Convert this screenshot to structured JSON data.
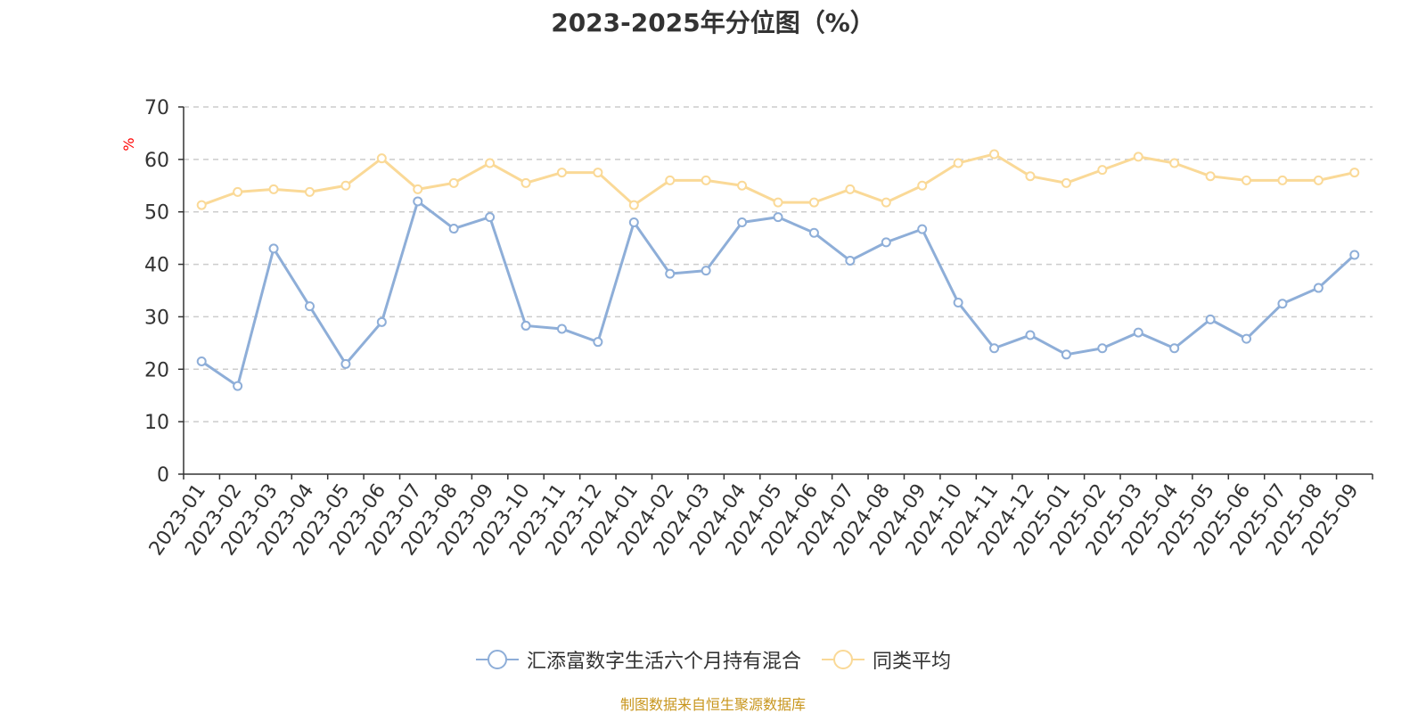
{
  "chart_data": {
    "type": "line",
    "title": "2023-2025年分位图（%）",
    "ylabel": "%",
    "ylim": [
      0,
      70
    ],
    "yticks": [
      0,
      10,
      20,
      30,
      40,
      50,
      60,
      70
    ],
    "grid": true,
    "legend_position": "bottom",
    "categories": [
      "2023-01",
      "2023-02",
      "2023-03",
      "2023-04",
      "2023-05",
      "2023-06",
      "2023-07",
      "2023-08",
      "2023-09",
      "2023-10",
      "2023-11",
      "2023-12",
      "2024-01",
      "2024-02",
      "2024-03",
      "2024-04",
      "2024-05",
      "2024-06",
      "2024-07",
      "2024-08",
      "2024-09",
      "2024-10",
      "2024-11",
      "2024-12",
      "2025-01",
      "2025-02",
      "2025-03",
      "2025-04",
      "2025-05",
      "2025-06",
      "2025-07",
      "2025-08",
      "2025-09"
    ],
    "series": [
      {
        "name": "汇添富数字生活六个月持有混合",
        "color": "#8eaed8",
        "values": [
          21.5,
          16.8,
          43.0,
          32.0,
          21.0,
          29.0,
          52.0,
          46.8,
          49.0,
          28.3,
          27.7,
          25.2,
          48.0,
          38.2,
          38.8,
          48.0,
          49.0,
          46.0,
          40.7,
          44.2,
          46.7,
          32.7,
          24.0,
          26.5,
          22.8,
          24.0,
          27.0,
          24.0,
          29.5,
          25.8,
          32.5,
          35.5,
          41.8
        ]
      },
      {
        "name": "同类平均",
        "color": "#fad997",
        "values": [
          51.3,
          53.8,
          54.3,
          53.8,
          55.0,
          60.2,
          54.3,
          55.5,
          59.3,
          55.5,
          57.5,
          57.5,
          51.3,
          56.0,
          56.0,
          55.0,
          51.8,
          51.8,
          54.3,
          51.8,
          55.0,
          59.3,
          61.0,
          56.8,
          55.5,
          58.0,
          60.5,
          59.3,
          56.8,
          56.0,
          56.0,
          56.0,
          57.5
        ]
      }
    ]
  },
  "source_note": "制图数据来自恒生聚源数据库"
}
